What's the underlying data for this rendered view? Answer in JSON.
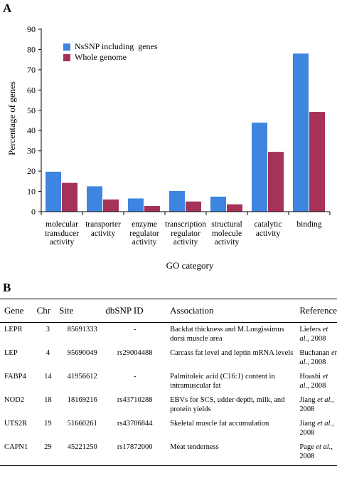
{
  "panel_a_label": "A",
  "panel_b_label": "B",
  "chart_data": {
    "type": "bar",
    "title": "",
    "xlabel": "GO category",
    "ylabel": "Percentage of genes",
    "ylim": [
      0,
      90
    ],
    "yticks": [
      0,
      10,
      20,
      30,
      40,
      50,
      60,
      70,
      80,
      90
    ],
    "categories": [
      [
        "molecular",
        "transducer",
        "activity"
      ],
      [
        "transporter",
        "activity"
      ],
      [
        "enzyme",
        "regulator",
        "activity"
      ],
      [
        "transcription",
        "regulator",
        "activity"
      ],
      [
        "structural",
        "molecule",
        "activity"
      ],
      [
        "catalytic",
        "activity"
      ],
      [
        "binding"
      ]
    ],
    "series": [
      {
        "name": "NsSNP including  genes",
        "color": "#3d85e0",
        "values": [
          19.7,
          12.5,
          6.5,
          10.2,
          7.4,
          43.9,
          78.0
        ]
      },
      {
        "name": "Whole genome",
        "color": "#a63257",
        "values": [
          14.2,
          6.0,
          2.8,
          5.0,
          3.6,
          29.5,
          49.2
        ]
      }
    ],
    "legend": "top-left",
    "grid": false
  },
  "table": {
    "headers": [
      "Gene",
      "Chr",
      "Site",
      "dbSNP ID",
      "Association",
      "Reference"
    ],
    "rows": [
      {
        "gene": "LEPR",
        "chr": "3",
        "site": "85691333",
        "dbsnp": "-",
        "association": "Backfat thickness and M.Longissimus dorsi muscle area",
        "ref_author": "Liefers",
        "ref_etal": " et al.",
        "ref_tail": ", 2008"
      },
      {
        "gene": "LEP",
        "chr": "4",
        "site": "95690049",
        "dbsnp": "rs29004488",
        "association": "Carcass fat level and leptin mRNA levels",
        "ref_author": "Buchanan",
        "ref_etal": " et al.",
        "ref_tail": ", 2008"
      },
      {
        "gene": "FABP4",
        "chr": "14",
        "site": "41956612",
        "dbsnp": "-",
        "association": "Palmitoleic acid (C16:1) content in intramuscular fat",
        "ref_author": "Hoashi",
        "ref_etal": " et al.",
        "ref_tail": ", 2008"
      },
      {
        "gene": "NOD2",
        "chr": "18",
        "site": "18169216",
        "dbsnp": "rs43710288",
        "association": "EBVs for SCS, udder depth, milk, and protein yields",
        "ref_author": "Jiang",
        "ref_etal": " et al.",
        "ref_tail": ", 2008"
      },
      {
        "gene": "UTS2R",
        "chr": "19",
        "site": "51660261",
        "dbsnp": "rs43706844",
        "association": "Skeletal muscle fat accumulation",
        "ref_author": "Jiang",
        "ref_etal": " et al.",
        "ref_tail": ", 2008"
      },
      {
        "gene": "CAPN1",
        "chr": "29",
        "site": "45221250",
        "dbsnp": "rs17872000",
        "association": "Meat tenderness",
        "ref_author": "Page",
        "ref_etal": " et al.",
        "ref_tail": ", 2008"
      }
    ]
  }
}
